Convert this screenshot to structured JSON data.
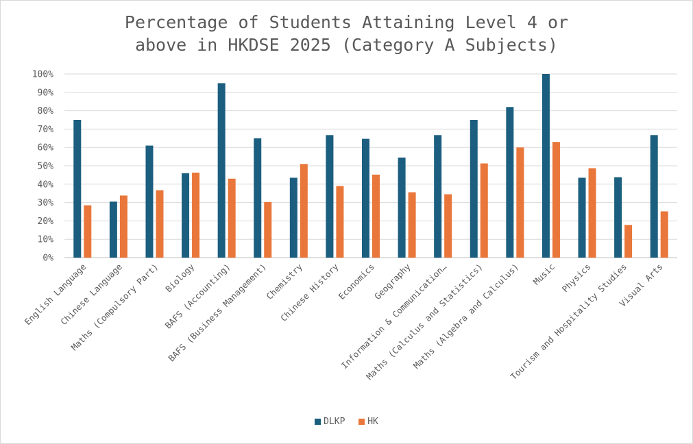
{
  "chart_data": {
    "type": "bar",
    "title_lines": [
      "Percentage of Students Attaining Level 4 or",
      "above in HKDSE 2025 (Category A Subjects)"
    ],
    "categories": [
      "English Language",
      "Chinese Language",
      "Maths (Compulsory Part)",
      "Biology",
      "BAFS (Accounting)",
      "BAFS (Business Management)",
      "Chemistry",
      "Chinese History",
      "Economics",
      "Geography",
      "Information & Communication…",
      "Maths (Calculus and Statistics)",
      "Maths (Algebra and Calculus)",
      "Music",
      "Physics",
      "Tourism and Hospitality Studies",
      "Visual Arts"
    ],
    "series": [
      {
        "name": "DLKP",
        "color": "#1b5e7f",
        "values": [
          75,
          30.5,
          61,
          46,
          95,
          65,
          43.5,
          66.7,
          64.7,
          54.5,
          66.7,
          75,
          82,
          100,
          43.5,
          43.8,
          66.7
        ]
      },
      {
        "name": "HK",
        "color": "#e9763a",
        "values": [
          28.5,
          33.8,
          36.7,
          46.3,
          43,
          30.3,
          51,
          39,
          45.2,
          35.6,
          34.5,
          51.3,
          60,
          63,
          48.7,
          17.8,
          25.2
        ]
      }
    ],
    "y_ticks": [
      "0%",
      "10%",
      "20%",
      "30%",
      "40%",
      "50%",
      "60%",
      "70%",
      "80%",
      "90%",
      "100%"
    ],
    "ylim": [
      0,
      100
    ],
    "grid": true,
    "legend_position": "bottom"
  }
}
